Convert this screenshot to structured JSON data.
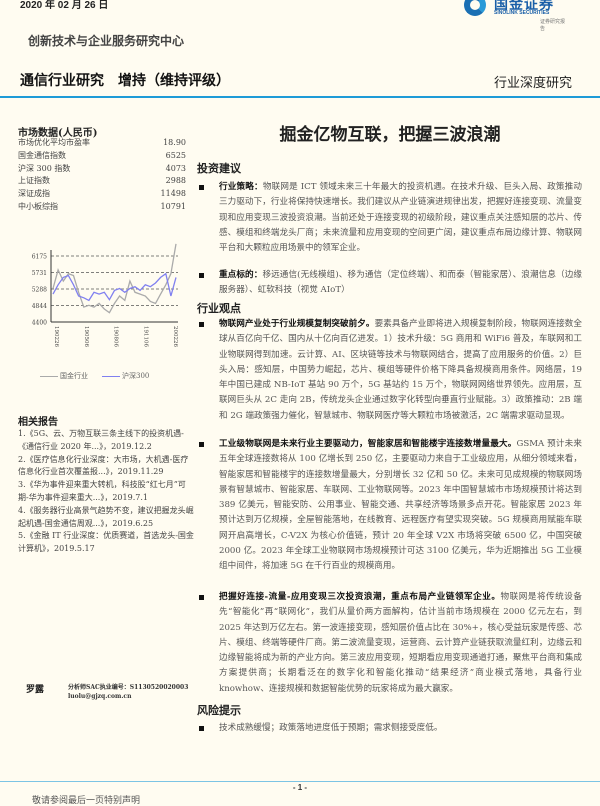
{
  "header": {
    "date": "2020 年 02 月 26 日",
    "logo_cn": "国金证券",
    "logo_en": "SINOLINK SECURITIES",
    "logo_sub": "证券研究报告",
    "center": "创新技术与企业服务研究中心",
    "industry_rating": "通信行业研究　增持（维持评级）",
    "report_type": "行业深度研究"
  },
  "title": "掘金亿物互联，把握三波浪潮",
  "market": {
    "heading": "市场数据(人民币)",
    "rows": [
      {
        "label": "市场优化平均市盈率",
        "value": "18.90"
      },
      {
        "label": "国金通信指数",
        "value": "6525"
      },
      {
        "label": "沪深 300 指数",
        "value": "4073"
      },
      {
        "label": "上证指数",
        "value": "2988"
      },
      {
        "label": "深证成指",
        "value": "11498"
      },
      {
        "label": "中小板综指",
        "value": "10791"
      }
    ]
  },
  "mini_chart": {
    "y_ticks": [
      "6175",
      "5731",
      "5288",
      "4844",
      "4400"
    ],
    "x_ticks": [
      "190226",
      "190506",
      "190806",
      "191106",
      "200226"
    ],
    "series": [
      {
        "name": "国金行业",
        "color": "#aaaaaa",
        "values": [
          5300,
          5800,
          5500,
          5700,
          5650,
          5200,
          4800,
          4850,
          4800,
          4900,
          4750,
          4650,
          4900,
          5100,
          4980,
          5500,
          5200,
          5150,
          5100,
          4950,
          4900,
          5150,
          5400,
          5700,
          6500
        ]
      },
      {
        "name": "沪深300",
        "color": "#8080f0",
        "values": [
          5150,
          5400,
          5600,
          5650,
          5400,
          5100,
          5050,
          4980,
          5200,
          5150,
          5200,
          5000,
          5250,
          5300,
          5200,
          5300,
          5350,
          5250,
          5400,
          5350,
          5450,
          5600,
          5700,
          5100,
          5600
        ]
      }
    ]
  },
  "related": {
    "heading": "相关报告",
    "items": [
      "1.《5G、云、万物互联三条主线下的投资机遇-《通信行业 2020 年...》，2019.12.2",
      "2.《医疗信息化行业深度：大市场，大机遇-医疗信息化行业首次覆盖报...》，2019.11.29",
      "3.《华为事件迎来重大转机，科技股“红七月”可期-华为事件迎来重大...》，2019.7.1",
      "4.《服务器行业高景气趋势不变，建议把握龙头崛起机遇-国金通信周观...》，2019.6.25",
      "5.《金融 IT 行业深度：优质赛道，首选龙头-国金计算机》，2019.5.17"
    ]
  },
  "author": {
    "name": "罗露",
    "sac": "分析师SAC执业编号：S1130520020003",
    "email": "luolu@gjzq.com.cn"
  },
  "sections": {
    "invest": "投资建议",
    "view": "行业观点",
    "risk": "风险提示"
  },
  "bullets": [
    {
      "lead": "行业策略：",
      "text": "物联网是 ICT 领域未来三十年最大的投资机遇。在技术升级、巨头入局、政策推动三力驱动下，行业将保持快速增长。我们建议从产业链演进规律出发，把握好连接变现、流量变现和应用变现三波投资浪潮。当前还处于连接变现的初级阶段，建议重点关注感知层的芯片、传感、模组和终端龙头厂商；未来流量和应用变现的空间更广阔，建议重点布局边缘计算、物联网平台和大颗粒应用场景中的领军企业。"
    },
    {
      "lead": "重点标的：",
      "text": "移远通信(无线模组)、移为通信（定位终端）、和而泰（智能家居）、浪潮信息（边缘服务器）、虹软科技（视觉 AIoT）"
    },
    {
      "lead": "物联网产业处于行业规模复制突破前夕。",
      "text": "要素具备产业即将进入规模复制阶段，物联网连接数全球从百亿向千亿、国内从十亿向百亿进发。1）技术升级：5G 商用和 WiFi6 普及，车联网和工业物联网得到加速。云计算、AI、区块链等技术与物联网结合，提高了应用服务的价值。2）巨头入局：感知层，中国势力崛起，芯片、模组等硬件价格下降具备规模商用条件。网络层，19 年中国已建成 NB-IoT 基站 90 万个，5G 基站约 15 万个，物联网网络世界领先。应用层，互联网巨头从 2C 走向 2B，传统龙头企业通过数字化转型向垂直行业赋能。3）政策推动：2B 端和 2G 端政策强力催化，智慧城市、物联网医疗等大颗粒市场被激活，2C 端需求驱动显现。"
    },
    {
      "lead": "工业级物联网是未来行业主要驱动力，智能家居和智能楼宇连接数增量最大。",
      "text": "GSMA 预计未来五年全球连接数将从 100 亿增长到 250 亿，主要驱动力来自于工业级应用，从细分领域来看，智能家居和智能楼宇的连接数增量最大，分别增长 32 亿和 50 亿。未来可见成规模的物联网场景有智慧城市、智能家居、车联网、工业物联网等。2023 年中国智慧城市市场规模预计将达到 389 亿美元，智能安防、公用事业、智能交通、共享经济等场景多点开花。智能家居 2023 年预计达到万亿规模，全屋智能落地，在线教育、远程医疗有望实现突破。5G 规模商用赋能车联网开启高增长，C-V2X 为核心价值链，预计 20 年全球 V2X 市场将突破 6500 亿，中国突破 2000 亿。2023 年全球工业物联网市场规模预计可达 3100 亿美元，华为近期推出 5G 工业模组中间件，将加速 5G 在千行百业的规模商用。"
    },
    {
      "lead": "把握好连接-流量-应用变现三次投资浪潮，重点布局产业链领军企业。",
      "text": "物联网是将传统设备先“智能化”再“联网化”，我们从量价两方面解构，估计当前市场规模在 2000 亿元左右，到 2025 年达到万亿左右。第一波连接变现，感知层价值占比在 30%+，核心受益玩家是传感、芯片、模组、终端等硬件厂商。第二波流量变现，运营商、云计算产业链获取流量红利，边缘云和边缘智能将成为新的产业方向。第三波应用变现，短期看应用变现通道打通，聚焦平台商和集成方案提供商；长期看泛在的数字化和智能化推动“结果经济”商业模式落地，具备行业 knowhow、连接规模和数据智能优势的玩家将成为最大赢家。"
    },
    {
      "lead": "",
      "text": "技术成熟缓慢；政策落地进度低于预期；需求侧接受度低。"
    }
  ],
  "footer": {
    "page": "- 1 -",
    "notice": "敬请参阅最后一页特别声明"
  }
}
